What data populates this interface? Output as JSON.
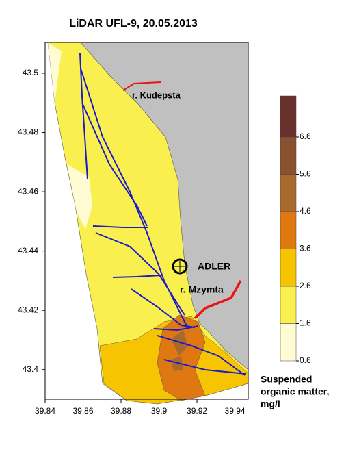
{
  "chart_data": {
    "type": "contour-map",
    "title": "LiDAR UFL-9, 20.05.2013",
    "xlim": [
      39.84,
      39.947
    ],
    "xticks": [
      39.84,
      39.86,
      39.88,
      39.9,
      39.92,
      39.94
    ],
    "ylim": [
      43.39,
      43.5104
    ],
    "yticks": [
      43.4,
      43.42,
      43.44,
      43.46,
      43.48,
      43.5
    ],
    "annotations": [
      "r. Kudepsta",
      "ADLER",
      "r. Mzymta"
    ],
    "colorbar": {
      "lim": [
        0.6,
        7.7
      ],
      "ticks": [
        0.6,
        1.6,
        2.6,
        3.6,
        4.6,
        5.6,
        6.6
      ],
      "colors": [
        "#fffbd2",
        "#f9f050",
        "#f6c400",
        "#e07812",
        "#a86a2c",
        "#8a5030",
        "#6a302c"
      ],
      "label_lines": [
        "Suspended",
        "organic matter,",
        "mg/l"
      ]
    }
  }
}
